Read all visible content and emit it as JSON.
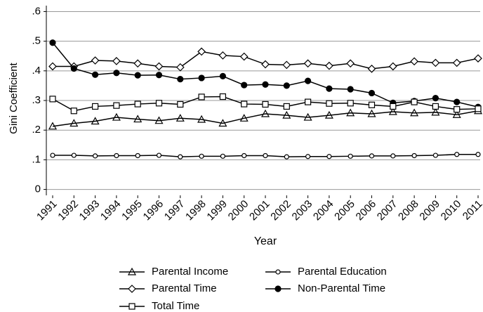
{
  "chart_data": {
    "type": "line",
    "y_label": "Gini Coefficient",
    "x_label": "Year",
    "categories": [
      "1991",
      "1992",
      "1993",
      "1994",
      "1995",
      "1996",
      "1997",
      "1998",
      "1999",
      "2000",
      "2001",
      "2002",
      "2003",
      "2004",
      "2005",
      "2006",
      "2007",
      "2008",
      "2009",
      "2010",
      "2011"
    ],
    "series": [
      {
        "name": "Parental Income",
        "color": "#000000",
        "marker": "triangle",
        "values": [
          0.213,
          0.223,
          0.23,
          0.243,
          0.237,
          0.232,
          0.24,
          0.236,
          0.223,
          0.24,
          0.255,
          0.25,
          0.243,
          0.25,
          0.258,
          0.255,
          0.262,
          0.258,
          0.26,
          0.252,
          0.265
        ]
      },
      {
        "name": "Parental Education",
        "color": "#000000",
        "marker": "small-circle",
        "values": [
          0.115,
          0.115,
          0.113,
          0.114,
          0.114,
          0.115,
          0.11,
          0.112,
          0.112,
          0.114,
          0.114,
          0.11,
          0.111,
          0.111,
          0.112,
          0.113,
          0.113,
          0.114,
          0.115,
          0.118,
          0.118
        ]
      },
      {
        "name": "Parental Time",
        "color": "#000000",
        "marker": "diamond",
        "values": [
          0.415,
          0.415,
          0.435,
          0.433,
          0.425,
          0.415,
          0.412,
          0.465,
          0.452,
          0.448,
          0.422,
          0.42,
          0.425,
          0.417,
          0.425,
          0.407,
          0.415,
          0.432,
          0.427,
          0.427,
          0.442
        ]
      },
      {
        "name": "Non-Parental Time",
        "color": "#000000",
        "marker": "filled-circle",
        "values": [
          0.495,
          0.408,
          0.387,
          0.393,
          0.385,
          0.386,
          0.372,
          0.376,
          0.382,
          0.352,
          0.354,
          0.35,
          0.366,
          0.34,
          0.338,
          0.325,
          0.292,
          0.298,
          0.308,
          0.295,
          0.278
        ]
      },
      {
        "name": "Total Time",
        "color": "#000000",
        "marker": "square",
        "values": [
          0.305,
          0.265,
          0.28,
          0.283,
          0.288,
          0.291,
          0.287,
          0.312,
          0.313,
          0.288,
          0.287,
          0.28,
          0.295,
          0.29,
          0.291,
          0.285,
          0.28,
          0.295,
          0.28,
          0.27,
          0.272
        ]
      }
    ],
    "ylim": [
      -0.02,
      0.62
    ],
    "yticks": [
      0,
      {
        "value": 0.1,
        "label": ".1"
      },
      {
        "value": 0.2,
        "label": ".2"
      },
      {
        "value": 0.3,
        "label": ".3"
      },
      {
        "value": 0.4,
        "label": ".4"
      },
      {
        "value": 0.5,
        "label": ".5"
      },
      {
        "value": 0.6,
        "label": ".6"
      }
    ],
    "grid": true,
    "legend": "bottom"
  }
}
